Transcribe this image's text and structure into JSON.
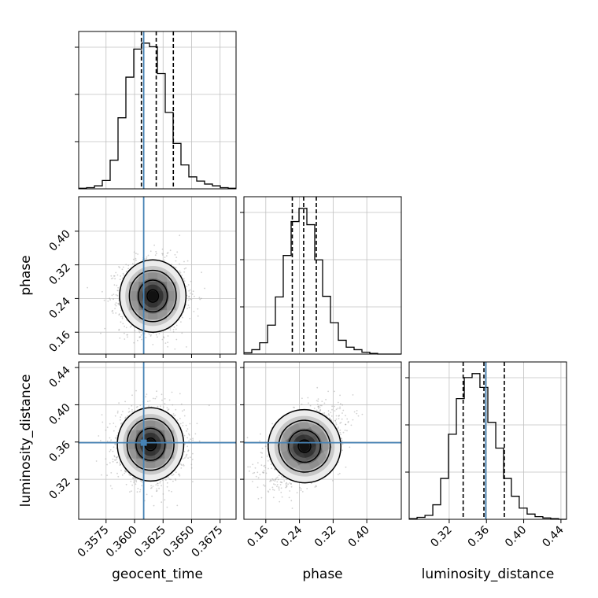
{
  "chart_data": {
    "type": "corner",
    "parameters": [
      "geocent_time",
      "phase",
      "luminosity_distance"
    ],
    "axis_labels": {
      "geocent_time": "geocent_time",
      "phase": "phase",
      "luminosity_distance": "luminosity_distance"
    },
    "ranges": {
      "geocent_time": [
        0.3551,
        0.3689
      ],
      "phase": [
        0.108,
        0.482
      ],
      "luminosity_distance": [
        0.277,
        0.446
      ]
    },
    "ticks": {
      "geocent_time": [
        "0.3575",
        "0.3600",
        "0.3625",
        "0.3650",
        "0.3675"
      ],
      "phase": [
        "0.16",
        "0.24",
        "0.32",
        "0.40"
      ],
      "luminosity_distance": [
        "0.32",
        "0.36",
        "0.40",
        "0.44"
      ]
    },
    "truths": {
      "geocent_time": 0.3608,
      "phase": null,
      "luminosity_distance": 0.3593
    },
    "quantile_lines": {
      "geocent_time": [
        0.3606,
        0.3619,
        0.3634
      ],
      "phase": [
        0.223,
        0.25,
        0.28
      ],
      "luminosity_distance": [
        0.335,
        0.3573,
        0.3792
      ]
    },
    "marginals": {
      "geocent_time": {
        "bin_edges": [
          0.3551,
          0.35579,
          0.35648,
          0.35717,
          0.35786,
          0.35855,
          0.35924,
          0.35993,
          0.36062,
          0.36131,
          0.362,
          0.36269,
          0.36338,
          0.36407,
          0.36476,
          0.36545,
          0.36614,
          0.36683,
          0.36752,
          0.36821,
          0.3689
        ],
        "counts": [
          1,
          2,
          5,
          14,
          48,
          119,
          187,
          234,
          244,
          238,
          193,
          128,
          76,
          40,
          20,
          13,
          8,
          5,
          2,
          1
        ]
      },
      "phase": {
        "bin_edges": [
          0.108,
          0.1267,
          0.1454,
          0.1641,
          0.1828,
          0.2015,
          0.2202,
          0.2389,
          0.2576,
          0.2763,
          0.295,
          0.3137,
          0.3324,
          0.3511,
          0.3698,
          0.3885,
          0.4072,
          0.4259,
          0.4446,
          0.4633,
          0.482
        ],
        "counts": [
          2,
          7,
          18,
          46,
          91,
          157,
          211,
          232,
          206,
          150,
          92,
          50,
          22,
          11,
          7,
          3,
          1,
          0,
          0,
          0
        ]
      },
      "luminosity_distance": {
        "bin_edges": [
          0.277,
          0.2855,
          0.294,
          0.3024,
          0.3108,
          0.3192,
          0.3277,
          0.3362,
          0.3446,
          0.353,
          0.3615,
          0.37,
          0.3784,
          0.3868,
          0.3952,
          0.4037,
          0.4122,
          0.4206,
          0.429,
          0.4375,
          0.446
        ],
        "counts": [
          1,
          3,
          6,
          22,
          62,
          129,
          183,
          215,
          221,
          200,
          147,
          108,
          62,
          35,
          17,
          8,
          4,
          2,
          1,
          0
        ]
      }
    },
    "joint": {
      "phase_vs_geocent_time": {
        "mean": [
          0.3616,
          0.246
        ],
        "std": [
          0.00142,
          0.042
        ],
        "correlation": 0.0
      },
      "luminosity_distance_vs_geocent_time": {
        "mean": [
          0.3614,
          0.3575
        ],
        "std": [
          0.00142,
          0.0192
        ],
        "correlation": 0.0
      },
      "luminosity_distance_vs_phase": {
        "mean": [
          0.252,
          0.3555
        ],
        "std": [
          0.042,
          0.0192
        ],
        "correlation": 0.45
      }
    },
    "colors": {
      "truth": "#4682b4",
      "hist": "#000000",
      "grid": "#c0c0c0",
      "scatter": "#9a9a9a"
    }
  }
}
